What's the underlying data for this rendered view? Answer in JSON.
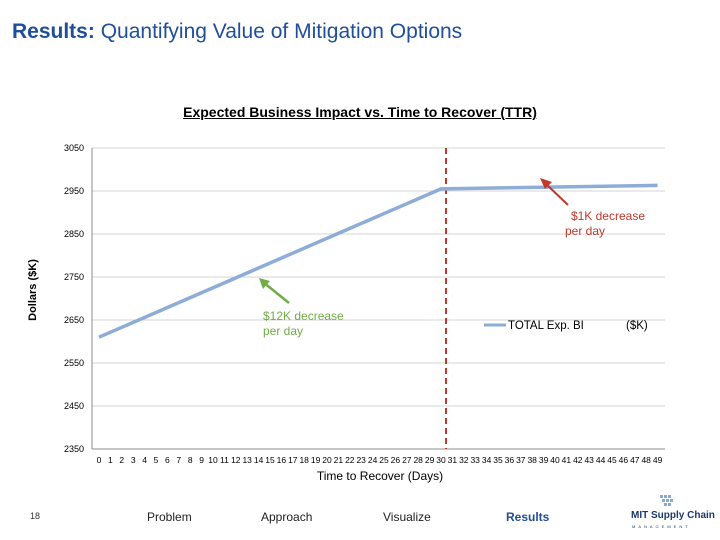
{
  "slide": {
    "title_bold": "Results:",
    "title_rest": "Quantifying Value of Mitigation Options",
    "slide_number": "18"
  },
  "footer": {
    "items": [
      "Problem",
      "Approach",
      "Visualize",
      "Results"
    ],
    "active": "Results",
    "active_color": "#1f4e9a"
  },
  "logo": {
    "text": "MIT Supply Chain",
    "sub": "MANAGEMENT"
  },
  "chart_data": {
    "type": "line",
    "title": "Expected Business Impact vs. Time to Recover (TTR)",
    "xlabel": "Time to Recover (Days)",
    "ylabel": "Dollars ($K)",
    "ylim": [
      2350,
      3050
    ],
    "yticks": [
      2350,
      2450,
      2550,
      2650,
      2750,
      2850,
      2950,
      3050
    ],
    "xticks": [
      "0",
      "1",
      "2",
      "3",
      "4",
      "5",
      "6",
      "7",
      "8",
      "9",
      "10",
      "11",
      "12",
      "13",
      "14",
      "15",
      "16",
      "17",
      "18",
      "19",
      "20",
      "21",
      "22",
      "23",
      "24",
      "25",
      "26",
      "27",
      "28",
      "29",
      "30",
      "31",
      "32",
      "33",
      "34",
      "35",
      "36",
      "37",
      "38",
      "39",
      "40",
      "41",
      "42",
      "43",
      "44",
      "45",
      "46",
      "47",
      "48",
      "49"
    ],
    "grid": true,
    "series": [
      {
        "name": "TOTAL Exp. BI ($K)",
        "color": "#8eadd6",
        "x": [
          0,
          30,
          49
        ],
        "y": [
          2610,
          2955,
          2963
        ]
      }
    ],
    "vline": {
      "x": 30,
      "color": "#c0392b"
    },
    "annotations": [
      {
        "text": "$12K decrease per day",
        "color": "#70ad47",
        "arrow_color": "#70ad47"
      },
      {
        "text": "$1K decrease per day",
        "color": "#c0392b",
        "arrow_color": "#c0392b"
      }
    ],
    "legend": {
      "label": "TOTAL Exp. BI",
      "unit": "($K)",
      "position": "right"
    }
  }
}
